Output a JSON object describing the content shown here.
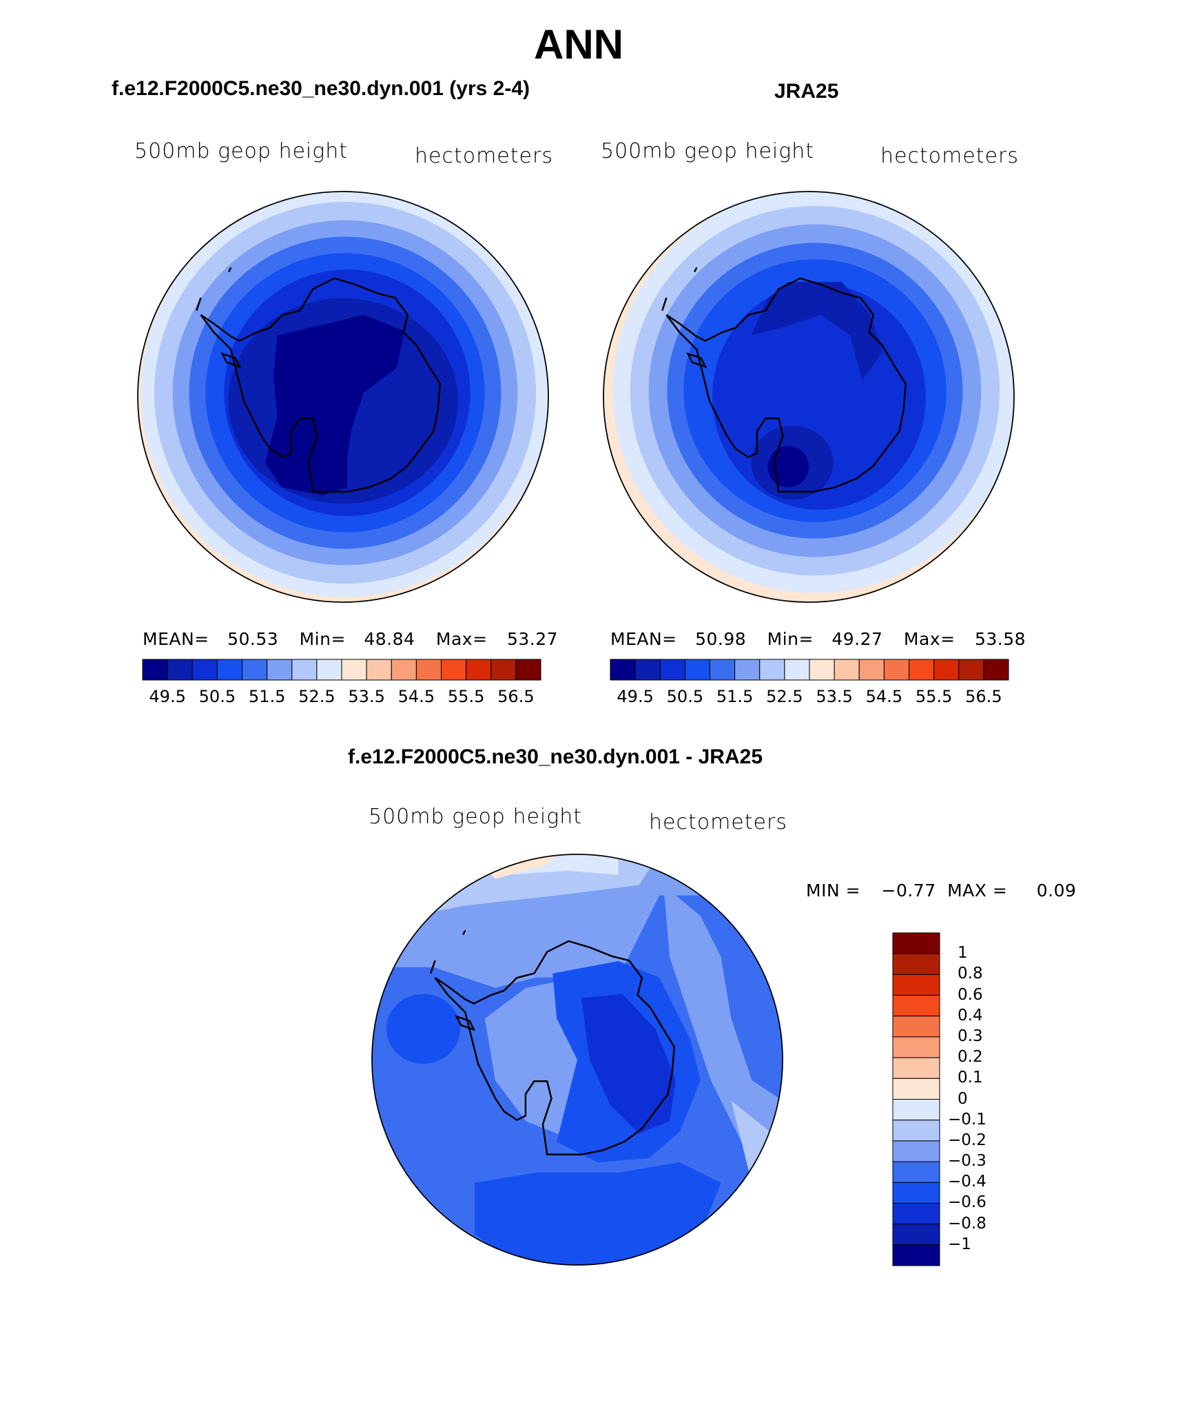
{
  "title": "ANN",
  "panels": [
    {
      "case": "f.e12.F2000C5.ne30_ne30.dyn.001 (yrs 2-4)",
      "variable": "500mb geop height",
      "units": "hectometers",
      "mean_label": "MEAN=",
      "mean": "50.53",
      "min_label": "Min=",
      "min": "48.84",
      "max_label": "Max=",
      "max": "53.27"
    },
    {
      "case": "JRA25",
      "variable": "500mb geop height",
      "units": "hectometers",
      "mean_label": "MEAN=",
      "mean": "50.98",
      "min_label": "Min=",
      "min": "49.27",
      "max_label": "Max=",
      "max": "53.58"
    }
  ],
  "diff": {
    "case": "f.e12.F2000C5.ne30_ne30.dyn.001 - JRA25",
    "variable": "500mb geop height",
    "units": "hectometers",
    "min_label": "MIN =",
    "min": "−0.77",
    "max_label": "MAX =",
    "max": "0.09"
  },
  "colorbar_main": {
    "colors": [
      "#00008b",
      "#0a1fb0",
      "#0d30d6",
      "#1650f0",
      "#3a6df0",
      "#7da0f5",
      "#b2c8f9",
      "#dce8fc",
      "#fde6d4",
      "#fcc6a8",
      "#f9a07a",
      "#f67548",
      "#f54a1a",
      "#d92a05",
      "#b01f05",
      "#7a0000"
    ],
    "labels": [
      "49.5",
      "50.5",
      "51.5",
      "52.5",
      "53.5",
      "54.5",
      "55.5",
      "56.5"
    ]
  },
  "colorbar_diff": {
    "colors_top_to_bottom": [
      "#7a0000",
      "#b01f05",
      "#d92a05",
      "#f54a1a",
      "#f67548",
      "#f9a07a",
      "#fcc6a8",
      "#fde6d4",
      "#dce8fc",
      "#b2c8f9",
      "#7da0f5",
      "#3a6df0",
      "#1650f0",
      "#0d30d6",
      "#0a1fb0",
      "#00008b"
    ],
    "labels": [
      "1",
      "0.8",
      "0.6",
      "0.4",
      "0.3",
      "0.2",
      "0.1",
      "0",
      "−0.1",
      "−0.2",
      "−0.3",
      "−0.4",
      "−0.6",
      "−0.8",
      "−1"
    ]
  }
}
